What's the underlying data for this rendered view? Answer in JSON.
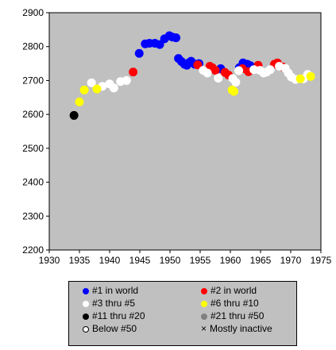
{
  "chart_data": {
    "type": "scatter",
    "title": "",
    "xlabel": "",
    "ylabel": "",
    "xlim": [
      1930,
      1975
    ],
    "ylim": [
      2200,
      2900
    ],
    "xticks": [
      1930,
      1935,
      1940,
      1945,
      1950,
      1955,
      1960,
      1965,
      1970,
      1975
    ],
    "yticks": [
      2200,
      2300,
      2400,
      2500,
      2600,
      2700,
      2800,
      2900
    ],
    "grid": false,
    "plot_background": "#c0c0c0",
    "legend_position": "bottom",
    "series": [
      {
        "name": "#1 in world",
        "color": "#0000ff",
        "marker": "filled-circle",
        "points": [
          [
            1944.9,
            2780
          ],
          [
            1945.9,
            2808
          ],
          [
            1946.6,
            2810
          ],
          [
            1947.5,
            2810
          ],
          [
            1948.3,
            2806
          ],
          [
            1949.1,
            2823
          ],
          [
            1949.9,
            2832
          ],
          [
            1950.4,
            2828
          ],
          [
            1951.0,
            2826
          ],
          [
            1951.4,
            2765
          ],
          [
            1951.9,
            2756
          ],
          [
            1952.4,
            2748
          ],
          [
            1952.8,
            2745
          ],
          [
            1953.1,
            2752
          ],
          [
            1953.5,
            2757
          ],
          [
            1954.1,
            2748
          ],
          [
            1954.8,
            2750
          ],
          [
            1958.4,
            2735
          ],
          [
            1961.5,
            2738
          ],
          [
            1962.1,
            2752
          ],
          [
            1962.8,
            2748
          ],
          [
            1963.3,
            2744
          ]
        ]
      },
      {
        "name": "#2 in world",
        "color": "#ff0000",
        "marker": "filled-circle",
        "points": [
          [
            1943.9,
            2725
          ],
          [
            1954.6,
            2746
          ],
          [
            1956.6,
            2742
          ],
          [
            1957.0,
            2738
          ],
          [
            1957.5,
            2730
          ],
          [
            1959.1,
            2724
          ],
          [
            1959.7,
            2716
          ],
          [
            1962.0,
            2735
          ],
          [
            1963.0,
            2726
          ],
          [
            1964.6,
            2745
          ],
          [
            1967.3,
            2748
          ],
          [
            1967.8,
            2752
          ],
          [
            1968.7,
            2740
          ]
        ]
      },
      {
        "name": "#3 thru #5",
        "color": "#ffffff",
        "marker": "filled-circle",
        "points": [
          [
            1937.0,
            2693
          ],
          [
            1938.8,
            2683
          ],
          [
            1940.0,
            2690
          ],
          [
            1940.7,
            2678
          ],
          [
            1941.8,
            2697
          ],
          [
            1942.8,
            2700
          ],
          [
            1955.5,
            2730
          ],
          [
            1956.2,
            2722
          ],
          [
            1958.0,
            2707
          ],
          [
            1960.4,
            2706
          ],
          [
            1960.9,
            2695
          ],
          [
            1961.4,
            2729
          ],
          [
            1963.9,
            2732
          ],
          [
            1964.9,
            2730
          ],
          [
            1965.5,
            2722
          ],
          [
            1966.0,
            2725
          ],
          [
            1966.6,
            2732
          ],
          [
            1968.1,
            2742
          ],
          [
            1969.1,
            2736
          ],
          [
            1969.6,
            2722
          ],
          [
            1970.1,
            2710
          ],
          [
            1970.8,
            2703
          ],
          [
            1972.1,
            2705
          ],
          [
            1972.8,
            2718
          ]
        ]
      },
      {
        "name": "#6 thru #10",
        "color": "#ffff00",
        "marker": "filled-circle",
        "points": [
          [
            1935.0,
            2637
          ],
          [
            1935.8,
            2672
          ],
          [
            1937.9,
            2675
          ],
          [
            1960.3,
            2672
          ],
          [
            1960.6,
            2668
          ],
          [
            1971.6,
            2705
          ],
          [
            1973.3,
            2712
          ]
        ]
      },
      {
        "name": "#11 thru #20",
        "color": "#000000",
        "marker": "filled-circle",
        "points": [
          [
            1934.1,
            2597
          ]
        ]
      },
      {
        "name": "#21 thru #50",
        "color": "#808080",
        "marker": "filled-circle",
        "points": []
      },
      {
        "name": "Below #50",
        "color": "#ffffff",
        "marker": "open-circle",
        "points": []
      },
      {
        "name": "Mostly inactive",
        "color": "#000000",
        "marker": "x",
        "points": []
      }
    ]
  }
}
